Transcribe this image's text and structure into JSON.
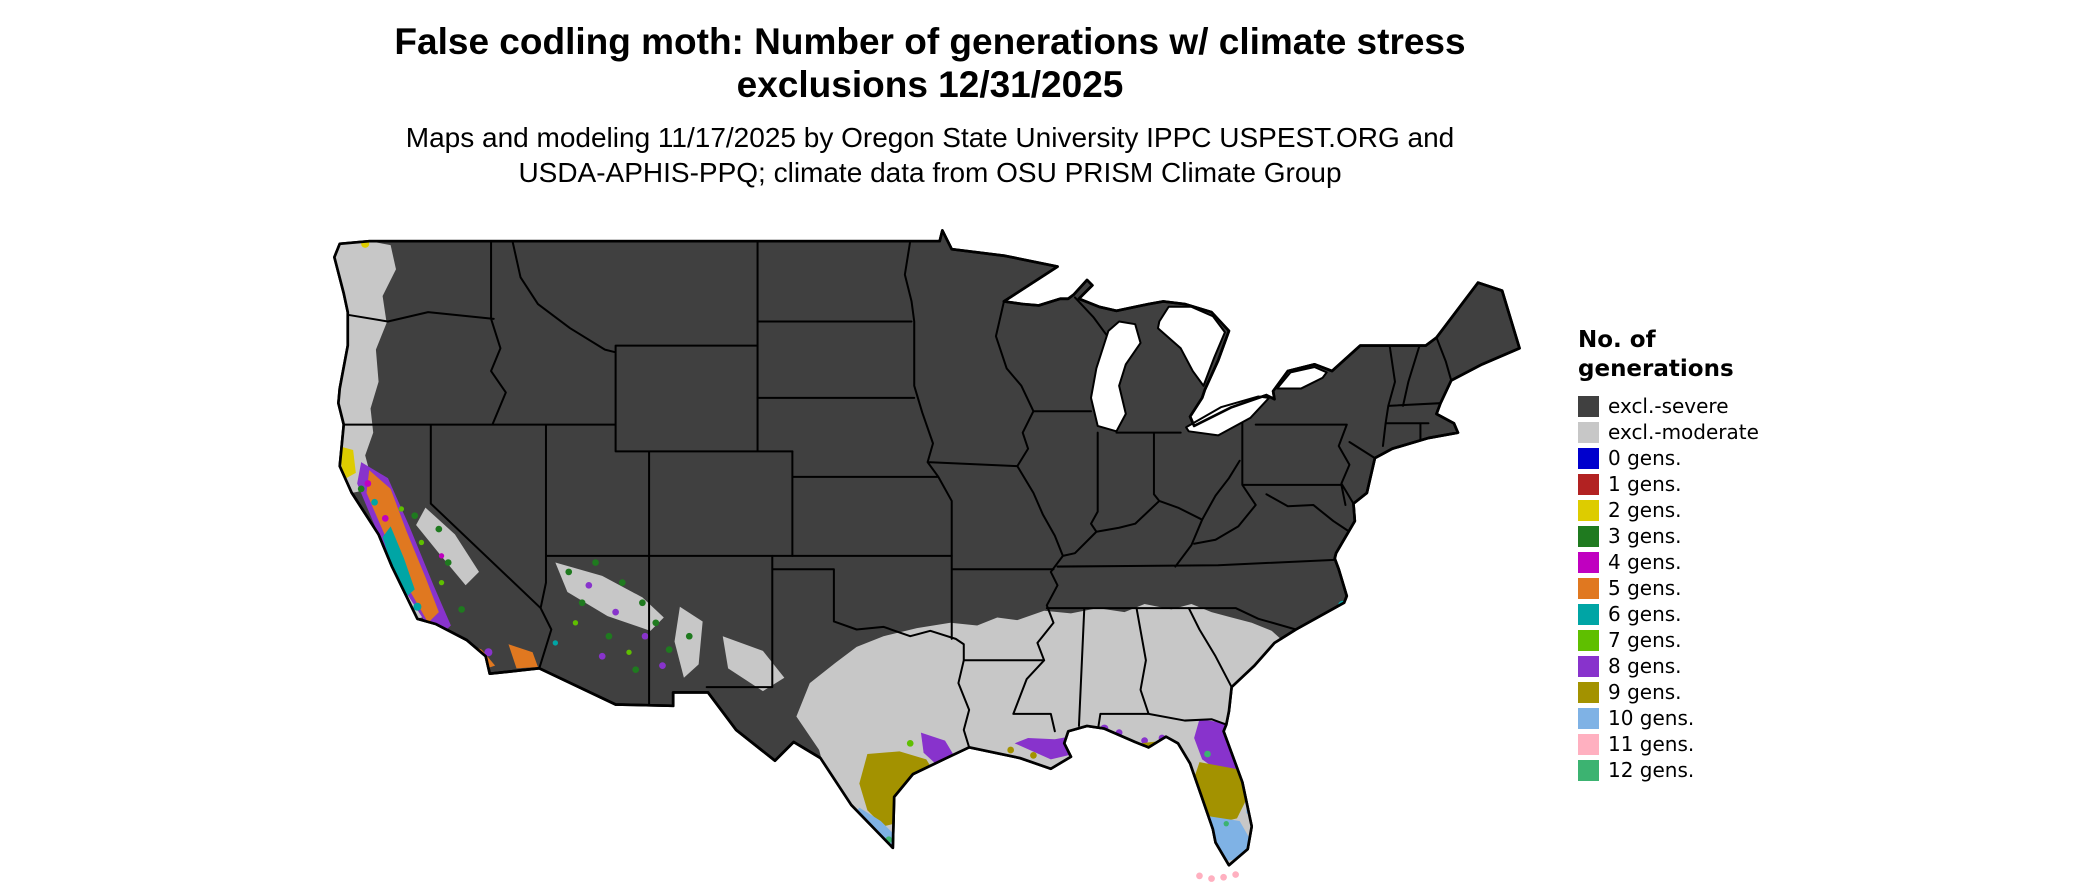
{
  "header": {
    "title_lines": [
      "False codling moth: Number of generations w/ climate stress",
      "exclusions 12/31/2025"
    ],
    "subtitle_lines": [
      "Maps and modeling 11/17/2025 by Oregon State University IPPC USPEST.ORG and",
      "USDA-APHIS-PPQ; climate data from OSU PRISM Climate Group"
    ]
  },
  "legend": {
    "title_lines": [
      "No. of",
      "generations"
    ],
    "items": [
      {
        "key": "excl-severe",
        "label": "excl.-severe",
        "color": "#404040"
      },
      {
        "key": "excl-moderate",
        "label": "excl.-moderate",
        "color": "#C7C7C7"
      },
      {
        "key": "gens-0",
        "label": "0 gens.",
        "color": "#0000CD"
      },
      {
        "key": "gens-1",
        "label": "1 gens.",
        "color": "#B22222"
      },
      {
        "key": "gens-2",
        "label": "2 gens.",
        "color": "#DDCC00"
      },
      {
        "key": "gens-3",
        "label": "3 gens.",
        "color": "#1F7A1F"
      },
      {
        "key": "gens-4",
        "label": "4 gens.",
        "color": "#C000C0"
      },
      {
        "key": "gens-5",
        "label": "5 gens.",
        "color": "#E07820"
      },
      {
        "key": "gens-6",
        "label": "6 gens.",
        "color": "#00A5A5"
      },
      {
        "key": "gens-7",
        "label": "7 gens.",
        "color": "#5FBF00"
      },
      {
        "key": "gens-8",
        "label": "8 gens.",
        "color": "#8833CC"
      },
      {
        "key": "gens-9",
        "label": "9 gens.",
        "color": "#A39200"
      },
      {
        "key": "gens-10",
        "label": "10 gens.",
        "color": "#7FB2E5"
      },
      {
        "key": "gens-11",
        "label": "11 gens.",
        "color": "#FFB0C0"
      },
      {
        "key": "gens-12",
        "label": "12 gens.",
        "color": "#3CB371"
      }
    ]
  },
  "map": {
    "background": "#FFFFFF",
    "border_color": "#000000",
    "regions_summary": [
      {
        "area": "Interior and northern contiguous US",
        "classes": [
          "excl.-severe"
        ]
      },
      {
        "area": "Pacific Northwest coast and valleys",
        "classes": [
          "excl.-moderate"
        ]
      },
      {
        "area": "Southern plains and Gulf/Southeast band",
        "classes": [
          "excl.-moderate"
        ]
      },
      {
        "area": "California Central Valley and south coast",
        "classes": [
          "2 gens.",
          "3 gens.",
          "4 gens.",
          "5 gens.",
          "6 gens.",
          "7 gens.",
          "8 gens."
        ]
      },
      {
        "area": "Arizona / New Mexico scattered patches",
        "classes": [
          "3 gens.",
          "7 gens.",
          "8 gens.",
          "excl.-moderate"
        ]
      },
      {
        "area": "South Texas coast",
        "classes": [
          "8 gens.",
          "9 gens.",
          "10 gens.",
          "12 gens."
        ]
      },
      {
        "area": "Louisiana / Mississippi / Alabama coast",
        "classes": [
          "8 gens.",
          "9 gens."
        ]
      },
      {
        "area": "Florida peninsula",
        "classes": [
          "8 gens.",
          "9 gens.",
          "10 gens.",
          "11 gens.",
          "12 gens."
        ]
      }
    ]
  }
}
